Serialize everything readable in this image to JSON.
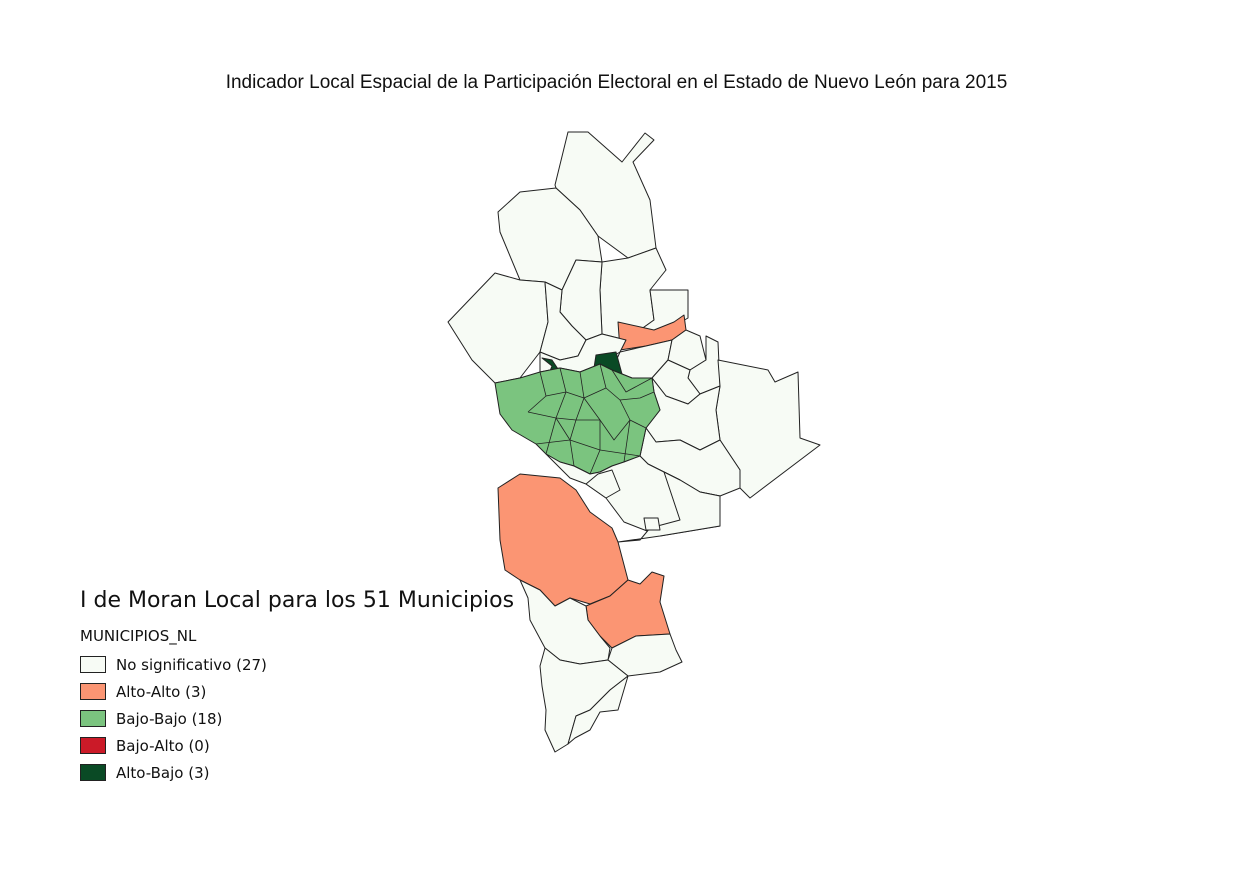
{
  "map": {
    "title": "Indicador Local Espacial de la Participación Electoral en el Estado de Nuevo León para 2015",
    "region": "Nuevo León",
    "colors": {
      "no_significativo": "#f7fbf5",
      "alto_alto": "#fb9573",
      "bajo_bajo": "#7bc47f",
      "bajo_alto": "#cb1a28",
      "alto_bajo": "#0a4a25",
      "border": "#222222"
    }
  },
  "legend": {
    "title": "I de Moran Local para los 51 Municipios",
    "layer_name": "MUNICIPIOS_NL",
    "items": [
      {
        "label": "No significativo (27)",
        "color": "#f7fbf5"
      },
      {
        "label": "Alto-Alto (3)",
        "color": "#fb9573"
      },
      {
        "label": "Bajo-Bajo (18)",
        "color": "#7bc47f"
      },
      {
        "label": "Bajo-Alto (0)",
        "color": "#cb1a28"
      },
      {
        "label": "Alto-Bajo (3)",
        "color": "#0a4a25"
      }
    ]
  }
}
